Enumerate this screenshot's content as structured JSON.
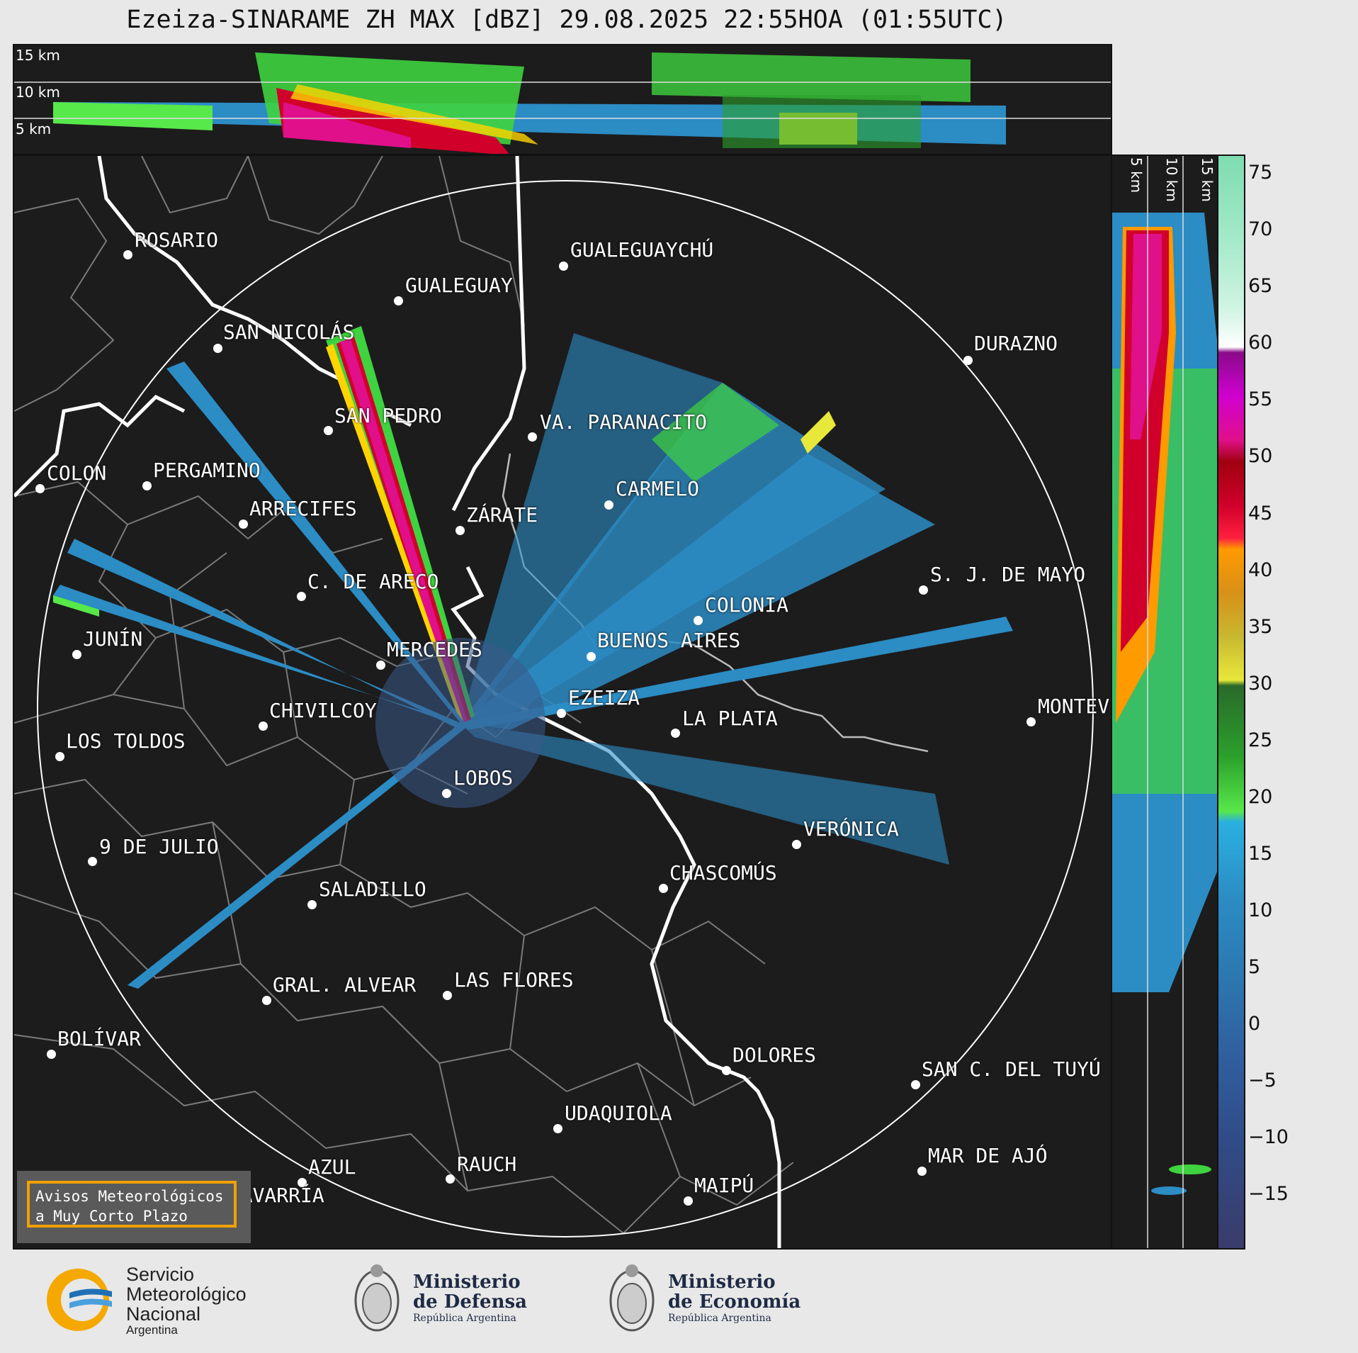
{
  "title": "Ezeiza-SINARAME ZH MAX [dBZ] 29.08.2025 22:55HOA (01:55UTC)",
  "height_labels": {
    "top": [
      "15 km",
      "10 km",
      "5 km"
    ],
    "side": [
      "5 km",
      "10 km",
      "15 km"
    ]
  },
  "cities": [
    {
      "name": "ROSARIO"
    },
    {
      "name": "GUALEGUAYCHÚ"
    },
    {
      "name": "GUALEGUAY"
    },
    {
      "name": "SAN NICOLÁS"
    },
    {
      "name": "DURAZNO"
    },
    {
      "name": "SAN PEDRO"
    },
    {
      "name": "VA. PARANACITO"
    },
    {
      "name": "COLON"
    },
    {
      "name": "PERGAMINO"
    },
    {
      "name": "CARMELO"
    },
    {
      "name": "ARRECIFES"
    },
    {
      "name": "ZÁRATE"
    },
    {
      "name": "S. J. DE MAYO"
    },
    {
      "name": "C. DE ARECO"
    },
    {
      "name": "COLONIA"
    },
    {
      "name": "JUNÍN"
    },
    {
      "name": "BUENOS AIRES"
    },
    {
      "name": "MERCEDES"
    },
    {
      "name": "EZEIZA"
    },
    {
      "name": "MONTEVIDEO"
    },
    {
      "name": "CHIVILCOY"
    },
    {
      "name": "LA PLATA"
    },
    {
      "name": "LOS TOLDOS"
    },
    {
      "name": "LOBOS"
    },
    {
      "name": "VERÓNICA"
    },
    {
      "name": "9 DE JULIO"
    },
    {
      "name": "CHASCOMÚS"
    },
    {
      "name": "SALADILLO"
    },
    {
      "name": "GRAL. ALVEAR"
    },
    {
      "name": "LAS FLORES"
    },
    {
      "name": "BOLÍVAR"
    },
    {
      "name": "DOLORES"
    },
    {
      "name": "SAN C. DEL TUYÚ"
    },
    {
      "name": "UDAQUIOLA"
    },
    {
      "name": "MAR DE AJÓ"
    },
    {
      "name": "AZUL"
    },
    {
      "name": "RAUCH"
    },
    {
      "name": "OLAVARRÍA"
    },
    {
      "name": "MAIPÚ"
    }
  ],
  "colorbar": {
    "unit": "dBZ",
    "ticks": [
      "75",
      "70",
      "65",
      "60",
      "55",
      "50",
      "45",
      "40",
      "35",
      "30",
      "25",
      "20",
      "15",
      "10",
      "5",
      "0",
      "−5",
      "−10",
      "−15"
    ],
    "min": -20,
    "max": 76.5
  },
  "alert": {
    "line1": "Avisos Meteorológicos",
    "line2": "a Muy Corto Plazo"
  },
  "logos": {
    "smn": {
      "line1": "Servicio",
      "line2": "Meteorológico",
      "line3": "Nacional",
      "line4": "Argentina"
    },
    "defensa": {
      "line1": "Ministerio",
      "line2": "de Defensa",
      "line3": "República Argentina"
    },
    "economia": {
      "line1": "Ministerio",
      "line2": "de Economía",
      "line3": "República Argentina"
    }
  },
  "colors": {
    "background": "#1c1c1c",
    "smn_blue": "#1f6fb5",
    "smn_orange": "#f5a800"
  }
}
